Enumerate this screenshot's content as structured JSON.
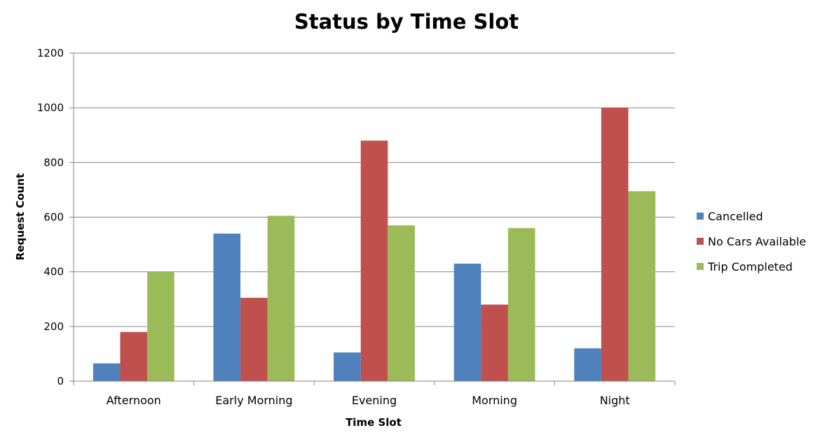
{
  "chart_data": {
    "type": "bar",
    "title": "Status by Time Slot",
    "xlabel": "Time Slot",
    "ylabel": "Request Count",
    "categories": [
      "Afternoon",
      "Early Morning",
      "Evening",
      "Morning",
      "Night"
    ],
    "series": [
      {
        "name": "Cancelled",
        "color": "#4f81bd",
        "values": [
          65,
          540,
          105,
          430,
          120
        ]
      },
      {
        "name": "No Cars Available",
        "color": "#c0504d",
        "values": [
          180,
          305,
          880,
          280,
          1000
        ]
      },
      {
        "name": "Trip Completed",
        "color": "#9bbb59",
        "values": [
          400,
          605,
          570,
          560,
          695
        ]
      }
    ],
    "ylim": [
      0,
      1200
    ],
    "yticks": [
      0,
      200,
      400,
      600,
      800,
      1000,
      1200
    ],
    "grid": true,
    "legend_position": "right"
  }
}
